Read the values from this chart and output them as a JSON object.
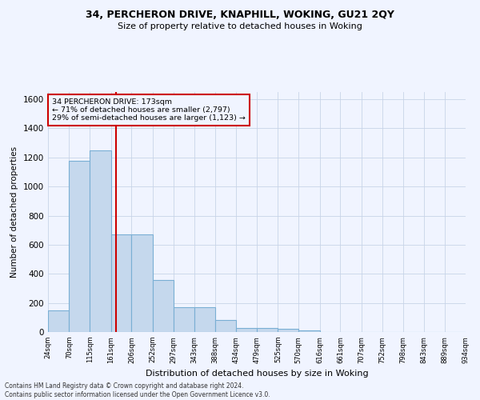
{
  "title1": "34, PERCHERON DRIVE, KNAPHILL, WOKING, GU21 2QY",
  "title2": "Size of property relative to detached houses in Woking",
  "xlabel": "Distribution of detached houses by size in Woking",
  "ylabel": "Number of detached properties",
  "bar_color": "#c5d8ed",
  "bar_edge_color": "#7aafd4",
  "grid_color": "#c8d4e8",
  "annotation_box_color": "#cc0000",
  "vline_color": "#cc0000",
  "footer1": "Contains HM Land Registry data © Crown copyright and database right 2024.",
  "footer2": "Contains public sector information licensed under the Open Government Licence v3.0.",
  "annotation_line1": "34 PERCHERON DRIVE: 173sqm",
  "annotation_line2": "← 71% of detached houses are smaller (2,797)",
  "annotation_line3": "29% of semi-detached houses are larger (1,123) →",
  "property_size": 173,
  "bin_edges": [
    24,
    70,
    115,
    161,
    206,
    252,
    297,
    343,
    388,
    434,
    479,
    525,
    570,
    616,
    661,
    707,
    752,
    798,
    843,
    889,
    934
  ],
  "bar_heights": [
    150,
    1175,
    1250,
    670,
    670,
    360,
    170,
    170,
    80,
    30,
    25,
    20,
    10,
    0,
    0,
    0,
    0,
    0,
    0,
    0
  ],
  "ylim": [
    0,
    1650
  ],
  "yticks": [
    0,
    200,
    400,
    600,
    800,
    1000,
    1200,
    1400,
    1600
  ],
  "background_color": "#f0f4ff"
}
